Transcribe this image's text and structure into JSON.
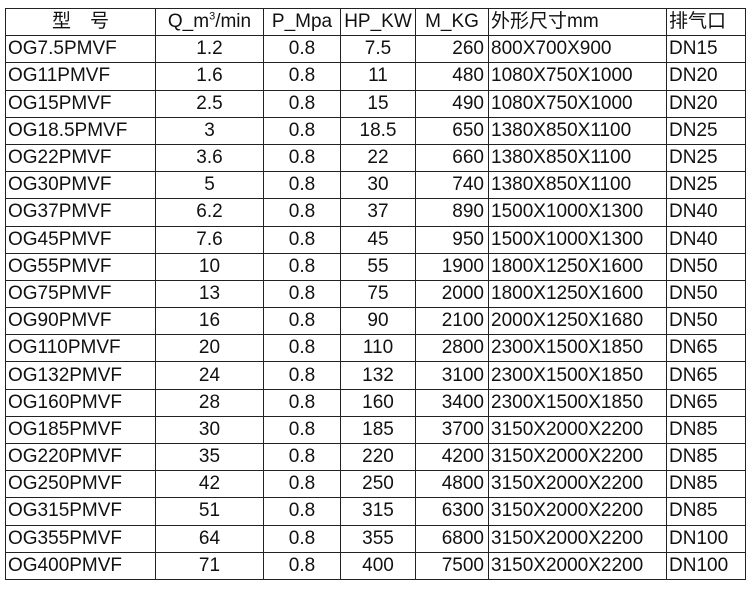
{
  "headers": {
    "model": "型　号",
    "flow_pre": "Q_m",
    "flow_sup": "3",
    "flow_post": "/min",
    "pressure": "P_Mpa",
    "power": "HP_KW",
    "mass": "M_KG",
    "dims": "外形尺寸mm",
    "outlet": "排气口"
  },
  "rows": [
    [
      "OG7.5PMVF",
      "1.2",
      "0.8",
      "7.5",
      "260",
      "800X700X900",
      "DN15"
    ],
    [
      "OG11PMVF",
      "1.6",
      "0.8",
      "11",
      "480",
      "1080X750X1000",
      "DN20"
    ],
    [
      "OG15PMVF",
      "2.5",
      "0.8",
      "15",
      "490",
      "1080X750X1000",
      "DN20"
    ],
    [
      "OG18.5PMVF",
      "3",
      "0.8",
      "18.5",
      "650",
      "1380X850X1100",
      "DN25"
    ],
    [
      "OG22PMVF",
      "3.6",
      "0.8",
      "22",
      "660",
      "1380X850X1100",
      "DN25"
    ],
    [
      "OG30PMVF",
      "5",
      "0.8",
      "30",
      "740",
      "1380X850X1100",
      "DN25"
    ],
    [
      "OG37PMVF",
      "6.2",
      "0.8",
      "37",
      "890",
      "1500X1000X1300",
      "DN40"
    ],
    [
      "OG45PMVF",
      "7.6",
      "0.8",
      "45",
      "950",
      "1500X1000X1300",
      "DN40"
    ],
    [
      "OG55PMVF",
      "10",
      "0.8",
      "55",
      "1900",
      "1800X1250X1600",
      "DN50"
    ],
    [
      "OG75PMVF",
      "13",
      "0.8",
      "75",
      "2000",
      "1800X1250X1600",
      "DN50"
    ],
    [
      "OG90PMVF",
      "16",
      "0.8",
      "90",
      "2100",
      "2000X1250X1680",
      "DN50"
    ],
    [
      "OG110PMVF",
      "20",
      "0.8",
      "110",
      "2800",
      "2300X1500X1850",
      "DN65"
    ],
    [
      "OG132PMVF",
      "24",
      "0.8",
      "132",
      "3100",
      "2300X1500X1850",
      "DN65"
    ],
    [
      "OG160PMVF",
      "28",
      "0.8",
      "160",
      "3400",
      "2300X1500X1850",
      "DN65"
    ],
    [
      "OG185PMVF",
      "30",
      "0.8",
      "185",
      "3700",
      "3150X2000X2200",
      "DN85"
    ],
    [
      "OG220PMVF",
      "35",
      "0.8",
      "220",
      "4200",
      "3150X2000X2200",
      "DN85"
    ],
    [
      "OG250PMVF",
      "42",
      "0.8",
      "250",
      "4800",
      "3150X2000X2200",
      "DN85"
    ],
    [
      "OG315PMVF",
      "51",
      "0.8",
      "315",
      "6300",
      "3150X2000X2200",
      "DN85"
    ],
    [
      "OG355PMVF",
      "64",
      "0.8",
      "355",
      "6800",
      "3150X2000X2200",
      "DN100"
    ],
    [
      "OG400PMVF",
      "71",
      "0.8",
      "400",
      "7500",
      "3150X2000X2200",
      "DN100"
    ]
  ]
}
